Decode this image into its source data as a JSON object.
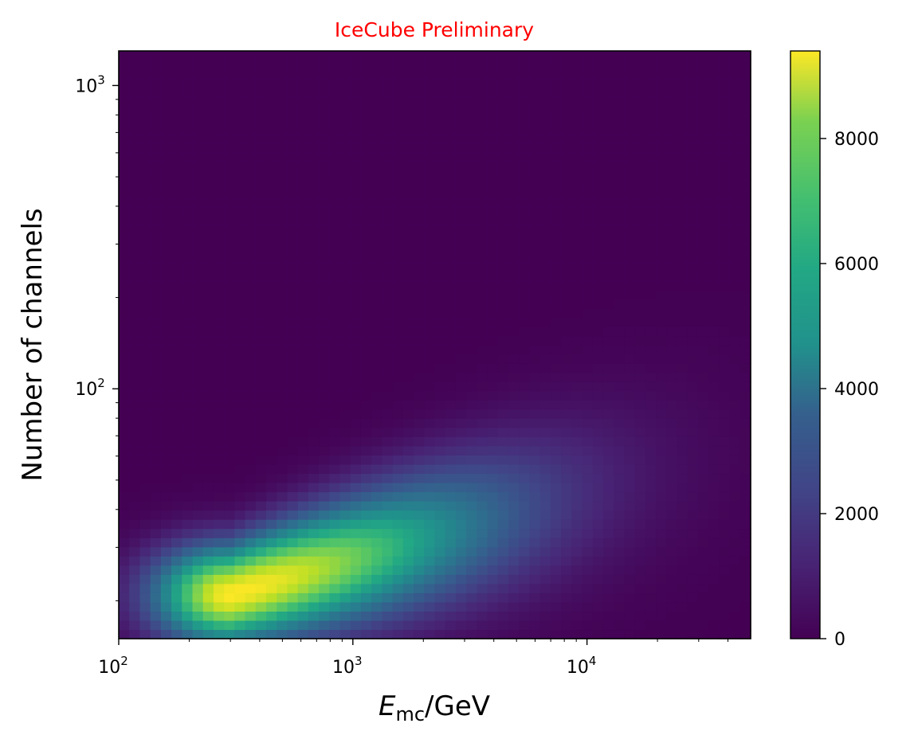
{
  "chart_data": {
    "type": "heatmap",
    "title": "IceCube Preliminary",
    "title_color": "#ff0000",
    "xlabel_main": "E",
    "xlabel_sub": "mc",
    "xlabel_rest": "/GeV",
    "ylabel": "Number of channels",
    "x_scale": "log",
    "y_scale": "log",
    "xlim": [
      100,
      50000
    ],
    "ylim": [
      15,
      1300
    ],
    "x_ticks": [
      {
        "value": 100,
        "base": "10",
        "exp": "2"
      },
      {
        "value": 1000,
        "base": "10",
        "exp": "3"
      },
      {
        "value": 10000,
        "base": "10",
        "exp": "4"
      }
    ],
    "y_ticks": [
      {
        "value": 100,
        "base": "10",
        "exp": "2"
      },
      {
        "value": 1000,
        "base": "10",
        "exp": "3"
      }
    ],
    "colormap": "viridis",
    "colorbar": {
      "min": 0,
      "max": 9400,
      "ticks": [
        {
          "value": 0,
          "label": "0"
        },
        {
          "value": 2000,
          "label": "2000"
        },
        {
          "value": 4000,
          "label": "4000"
        },
        {
          "value": 6000,
          "label": "6000"
        },
        {
          "value": 8000,
          "label": "8000"
        }
      ]
    },
    "density_peak": {
      "x": 300,
      "y": 21,
      "value": 9400
    },
    "grid": false
  }
}
